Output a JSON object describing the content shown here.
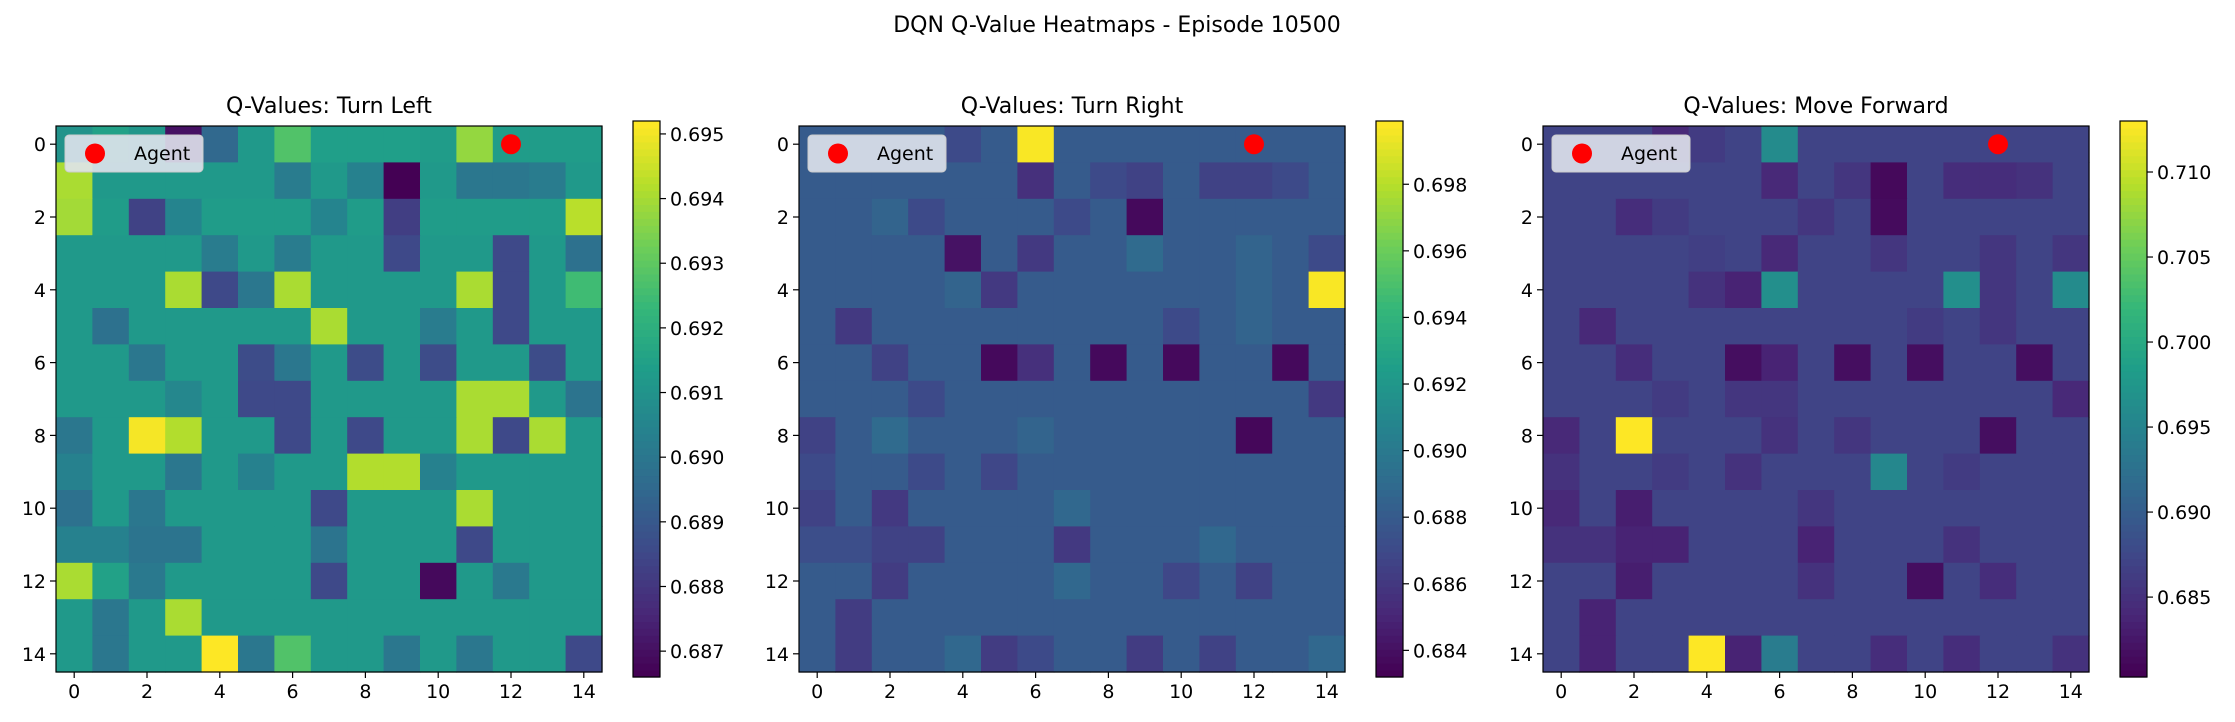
{
  "figure": {
    "title": "DQN Q-Value Heatmaps - Episode 10500"
  },
  "colormap": [
    "#440154",
    "#482878",
    "#3e4989",
    "#31688e",
    "#26828e",
    "#1f9e89",
    "#35b779",
    "#6ece58",
    "#b5de2b",
    "#fde725"
  ],
  "colors": {
    "marker": "#ff0000",
    "legend_bg": "#dfe3ec"
  },
  "chart_data": [
    {
      "type": "heatmap",
      "title": "Q-Values: Turn Left",
      "vmin": 0.6866,
      "vmax": 0.6952,
      "x_ticks": [
        0,
        2,
        4,
        6,
        8,
        10,
        12,
        14
      ],
      "y_ticks": [
        0,
        2,
        4,
        6,
        8,
        10,
        12,
        14
      ],
      "colorbar_ticks": [
        "0.687",
        "0.688",
        "0.689",
        "0.690",
        "0.691",
        "0.692",
        "0.693",
        "0.694",
        "0.695"
      ],
      "agent": {
        "x": 12,
        "y": 0,
        "label": "Agent"
      },
      "grid": [
        [
          0.691,
          0.6915,
          0.6911,
          0.687,
          0.6895,
          0.6912,
          0.6928,
          0.6914,
          0.6914,
          0.6914,
          0.6913,
          0.6938,
          0.6913,
          0.6913,
          0.6913
        ],
        [
          0.6941,
          0.6912,
          0.6912,
          0.6912,
          0.6912,
          0.6912,
          0.6902,
          0.6912,
          0.6904,
          0.6866,
          0.6912,
          0.69,
          0.69,
          0.6902,
          0.6912
        ],
        [
          0.694,
          0.6913,
          0.6883,
          0.6905,
          0.6913,
          0.6913,
          0.6913,
          0.6905,
          0.6913,
          0.6882,
          0.6913,
          0.6913,
          0.6913,
          0.6913,
          0.6943
        ],
        [
          0.6912,
          0.6912,
          0.6912,
          0.6912,
          0.6902,
          0.6912,
          0.6902,
          0.6912,
          0.6912,
          0.6885,
          0.6912,
          0.6912,
          0.6885,
          0.6912,
          0.6898
        ],
        [
          0.6912,
          0.6912,
          0.6912,
          0.6941,
          0.6885,
          0.69,
          0.6941,
          0.6912,
          0.6912,
          0.6912,
          0.6912,
          0.6941,
          0.6885,
          0.6912,
          0.6925
        ],
        [
          0.6912,
          0.6898,
          0.6912,
          0.6912,
          0.6912,
          0.6912,
          0.6912,
          0.6941,
          0.6912,
          0.6912,
          0.6902,
          0.6912,
          0.6885,
          0.6912,
          0.6912
        ],
        [
          0.6912,
          0.6912,
          0.69,
          0.6912,
          0.6912,
          0.6886,
          0.69,
          0.6912,
          0.6886,
          0.6912,
          0.6886,
          0.6912,
          0.6912,
          0.6886,
          0.6912
        ],
        [
          0.6912,
          0.6912,
          0.6912,
          0.6906,
          0.6912,
          0.6885,
          0.6885,
          0.6912,
          0.6912,
          0.6912,
          0.6912,
          0.6941,
          0.6941,
          0.6912,
          0.6899
        ],
        [
          0.69,
          0.6912,
          0.6951,
          0.6942,
          0.6912,
          0.6912,
          0.6885,
          0.6912,
          0.6885,
          0.6912,
          0.6912,
          0.6941,
          0.6885,
          0.6941,
          0.6912
        ],
        [
          0.6904,
          0.6912,
          0.6912,
          0.69,
          0.6912,
          0.6904,
          0.6912,
          0.6912,
          0.6942,
          0.6942,
          0.6904,
          0.6912,
          0.6912,
          0.6912,
          0.6912
        ],
        [
          0.6898,
          0.6912,
          0.69,
          0.6912,
          0.6912,
          0.6912,
          0.6912,
          0.6885,
          0.6912,
          0.6912,
          0.6912,
          0.6941,
          0.6912,
          0.6912,
          0.6912
        ],
        [
          0.6904,
          0.6904,
          0.6899,
          0.6899,
          0.6912,
          0.6912,
          0.6912,
          0.6899,
          0.6912,
          0.6912,
          0.6912,
          0.6885,
          0.6912,
          0.6912,
          0.6912
        ],
        [
          0.6941,
          0.6915,
          0.6901,
          0.6912,
          0.6912,
          0.6912,
          0.6912,
          0.6885,
          0.6912,
          0.6912,
          0.6868,
          0.6912,
          0.6901,
          0.6912,
          0.6912
        ],
        [
          0.6912,
          0.69,
          0.6912,
          0.6941,
          0.6912,
          0.6912,
          0.6912,
          0.6912,
          0.6912,
          0.6912,
          0.6912,
          0.6912,
          0.6912,
          0.6912,
          0.6912
        ],
        [
          0.6912,
          0.69,
          0.6912,
          0.6912,
          0.6952,
          0.69,
          0.6928,
          0.6912,
          0.6912,
          0.69,
          0.6912,
          0.69,
          0.6912,
          0.6912,
          0.6885
        ]
      ]
    },
    {
      "type": "heatmap",
      "title": "Q-Values: Turn Right",
      "vmin": 0.6832,
      "vmax": 0.6999,
      "x_ticks": [
        0,
        2,
        4,
        6,
        8,
        10,
        12,
        14
      ],
      "y_ticks": [
        0,
        2,
        4,
        6,
        8,
        10,
        12,
        14
      ],
      "colorbar_ticks": [
        "0.684",
        "0.686",
        "0.688",
        "0.690",
        "0.692",
        "0.694",
        "0.696",
        "0.698"
      ],
      "agent": {
        "x": 12,
        "y": 0,
        "label": "Agent"
      },
      "grid": [
        [
          0.688,
          0.688,
          0.688,
          0.688,
          0.687,
          0.688,
          0.6998,
          0.688,
          0.688,
          0.688,
          0.688,
          0.688,
          0.688,
          0.688,
          0.688
        ],
        [
          0.688,
          0.688,
          0.688,
          0.688,
          0.688,
          0.688,
          0.6855,
          0.688,
          0.687,
          0.6865,
          0.688,
          0.6865,
          0.6865,
          0.687,
          0.688
        ],
        [
          0.688,
          0.688,
          0.6885,
          0.687,
          0.688,
          0.688,
          0.688,
          0.687,
          0.688,
          0.6836,
          0.688,
          0.688,
          0.688,
          0.688,
          0.688
        ],
        [
          0.688,
          0.688,
          0.688,
          0.688,
          0.684,
          0.688,
          0.686,
          0.688,
          0.688,
          0.689,
          0.688,
          0.688,
          0.6885,
          0.688,
          0.687
        ],
        [
          0.688,
          0.688,
          0.688,
          0.688,
          0.6885,
          0.686,
          0.688,
          0.688,
          0.688,
          0.688,
          0.688,
          0.688,
          0.6885,
          0.688,
          0.6998
        ],
        [
          0.688,
          0.686,
          0.688,
          0.688,
          0.688,
          0.688,
          0.688,
          0.688,
          0.688,
          0.688,
          0.687,
          0.688,
          0.6885,
          0.688,
          0.688
        ],
        [
          0.688,
          0.688,
          0.6865,
          0.688,
          0.688,
          0.6836,
          0.6855,
          0.688,
          0.6836,
          0.688,
          0.6836,
          0.688,
          0.688,
          0.6836,
          0.688
        ],
        [
          0.688,
          0.688,
          0.688,
          0.687,
          0.688,
          0.688,
          0.688,
          0.688,
          0.688,
          0.688,
          0.688,
          0.688,
          0.688,
          0.688,
          0.686
        ],
        [
          0.6865,
          0.688,
          0.689,
          0.688,
          0.688,
          0.688,
          0.6885,
          0.688,
          0.688,
          0.688,
          0.688,
          0.688,
          0.6835,
          0.688,
          0.688
        ],
        [
          0.687,
          0.688,
          0.688,
          0.687,
          0.688,
          0.6868,
          0.688,
          0.688,
          0.688,
          0.688,
          0.688,
          0.688,
          0.688,
          0.688,
          0.688
        ],
        [
          0.6865,
          0.688,
          0.686,
          0.688,
          0.688,
          0.688,
          0.688,
          0.6888,
          0.688,
          0.688,
          0.688,
          0.688,
          0.688,
          0.688,
          0.688
        ],
        [
          0.6872,
          0.6872,
          0.6865,
          0.6865,
          0.688,
          0.688,
          0.688,
          0.686,
          0.688,
          0.688,
          0.688,
          0.6888,
          0.688,
          0.688,
          0.688
        ],
        [
          0.688,
          0.688,
          0.6862,
          0.688,
          0.688,
          0.688,
          0.688,
          0.6888,
          0.688,
          0.688,
          0.6868,
          0.688,
          0.6865,
          0.688,
          0.688
        ],
        [
          0.688,
          0.6862,
          0.688,
          0.688,
          0.688,
          0.688,
          0.688,
          0.688,
          0.688,
          0.688,
          0.688,
          0.688,
          0.688,
          0.688,
          0.688
        ],
        [
          0.688,
          0.6862,
          0.688,
          0.688,
          0.6888,
          0.6862,
          0.687,
          0.688,
          0.688,
          0.6862,
          0.688,
          0.6865,
          0.688,
          0.688,
          0.6888
        ]
      ]
    },
    {
      "type": "heatmap",
      "title": "Q-Values: Move Forward",
      "vmin": 0.6803,
      "vmax": 0.713,
      "x_ticks": [
        0,
        2,
        4,
        6,
        8,
        10,
        12,
        14
      ],
      "y_ticks": [
        0,
        2,
        4,
        6,
        8,
        10,
        12,
        14
      ],
      "colorbar_ticks": [
        "0.685",
        "0.690",
        "0.695",
        "0.700",
        "0.705",
        "0.710"
      ],
      "agent": {
        "x": 12,
        "y": 0,
        "label": "Agent"
      },
      "grid": [
        [
          0.687,
          0.687,
          0.687,
          0.684,
          0.686,
          0.687,
          0.696,
          0.687,
          0.687,
          0.687,
          0.687,
          0.687,
          0.687,
          0.687,
          0.687
        ],
        [
          0.687,
          0.687,
          0.687,
          0.687,
          0.687,
          0.687,
          0.684,
          0.687,
          0.6855,
          0.681,
          0.687,
          0.6845,
          0.6845,
          0.685,
          0.687
        ],
        [
          0.687,
          0.687,
          0.6845,
          0.686,
          0.687,
          0.687,
          0.687,
          0.6855,
          0.687,
          0.6812,
          0.687,
          0.687,
          0.687,
          0.687,
          0.687
        ],
        [
          0.687,
          0.687,
          0.687,
          0.687,
          0.6865,
          0.687,
          0.684,
          0.687,
          0.687,
          0.6855,
          0.687,
          0.687,
          0.6855,
          0.687,
          0.6855
        ],
        [
          0.687,
          0.687,
          0.687,
          0.687,
          0.685,
          0.6835,
          0.6965,
          0.687,
          0.687,
          0.687,
          0.687,
          0.6965,
          0.6855,
          0.687,
          0.696
        ],
        [
          0.687,
          0.684,
          0.687,
          0.687,
          0.687,
          0.687,
          0.687,
          0.687,
          0.687,
          0.687,
          0.686,
          0.687,
          0.6855,
          0.687,
          0.687
        ],
        [
          0.687,
          0.687,
          0.6845,
          0.687,
          0.687,
          0.6815,
          0.6835,
          0.687,
          0.6815,
          0.687,
          0.6815,
          0.687,
          0.687,
          0.6815,
          0.687
        ],
        [
          0.687,
          0.687,
          0.687,
          0.686,
          0.687,
          0.6855,
          0.6855,
          0.687,
          0.687,
          0.687,
          0.687,
          0.687,
          0.687,
          0.687,
          0.684
        ],
        [
          0.684,
          0.687,
          0.713,
          0.687,
          0.687,
          0.687,
          0.685,
          0.687,
          0.6855,
          0.687,
          0.687,
          0.687,
          0.6815,
          0.687,
          0.687
        ],
        [
          0.685,
          0.687,
          0.687,
          0.686,
          0.687,
          0.685,
          0.687,
          0.687,
          0.687,
          0.6955,
          0.687,
          0.686,
          0.687,
          0.687,
          0.687
        ],
        [
          0.684,
          0.687,
          0.683,
          0.687,
          0.687,
          0.687,
          0.687,
          0.6855,
          0.687,
          0.687,
          0.687,
          0.687,
          0.687,
          0.687,
          0.687
        ],
        [
          0.685,
          0.685,
          0.6835,
          0.6835,
          0.687,
          0.687,
          0.687,
          0.6835,
          0.687,
          0.687,
          0.687,
          0.685,
          0.687,
          0.687,
          0.687
        ],
        [
          0.687,
          0.687,
          0.683,
          0.687,
          0.687,
          0.687,
          0.687,
          0.685,
          0.687,
          0.687,
          0.6815,
          0.687,
          0.6845,
          0.687,
          0.687
        ],
        [
          0.687,
          0.6835,
          0.687,
          0.687,
          0.687,
          0.687,
          0.687,
          0.687,
          0.687,
          0.687,
          0.687,
          0.687,
          0.687,
          0.687,
          0.687
        ],
        [
          0.687,
          0.6835,
          0.687,
          0.687,
          0.713,
          0.6835,
          0.694,
          0.687,
          0.687,
          0.6845,
          0.687,
          0.6845,
          0.687,
          0.687,
          0.685
        ]
      ]
    }
  ]
}
